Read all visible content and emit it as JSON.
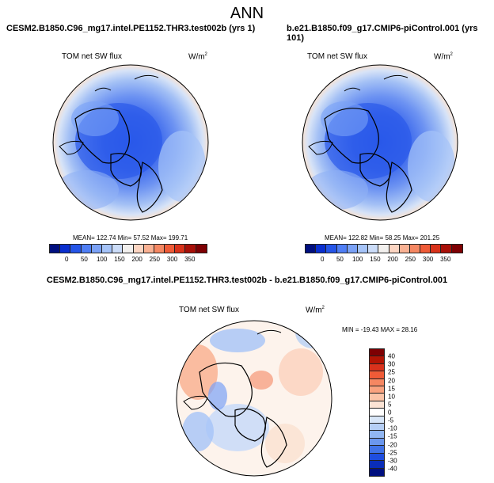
{
  "main_title": "ANN",
  "left_case": "CESM2.B1850.C96_mg17.intel.PE1152.THR3.test002b (yrs 1)",
  "right_case": "b.e21.B1850.f09_g17.CMIP6-piControl.001 (yrs 101)",
  "diff_title": "CESM2.B1850.C96_mg17.intel.PE1152.THR3.test002b - b.e21.B1850.f09_g17.CMIP6-piControl.001",
  "variable_label": "TOM net SW flux",
  "units_base": "W/m",
  "units_exp": "2",
  "left_stats": "MEAN= 122.74  Min=  57.52  Max= 199.71",
  "right_stats": "MEAN= 122.82  Min=  58.25  Max= 201.25",
  "diff_stats": "MIN = -19.43 MAX =  28.16",
  "abs_colorbar": {
    "ticks": [
      "0",
      "50",
      "100",
      "150",
      "200",
      "250",
      "300",
      "350"
    ],
    "colors": [
      "#000f7f",
      "#0a2fcf",
      "#2555e8",
      "#4f7ef5",
      "#7aa1f6",
      "#a5c3f8",
      "#cbdcf8",
      "#f2f0ee",
      "#fcd5c2",
      "#f9b193",
      "#f58762",
      "#ef5b37",
      "#d8321a",
      "#a81008",
      "#7e0003"
    ]
  },
  "diff_colorbar": {
    "ticks": [
      "40",
      "30",
      "25",
      "20",
      "15",
      "10",
      "5",
      "0",
      "-5",
      "-10",
      "-15",
      "-20",
      "-25",
      "-30",
      "-40"
    ],
    "colors": [
      "#7e0003",
      "#b31404",
      "#d9321c",
      "#ef5b37",
      "#f58762",
      "#f9a27f",
      "#fbc4a8",
      "#fbe3d4",
      "#ffffff",
      "#d8e6f8",
      "#b6cff5",
      "#91b6f2",
      "#6b97ee",
      "#4173e8",
      "#1f4ee0",
      "#0a2db8",
      "#000f7f"
    ]
  }
}
